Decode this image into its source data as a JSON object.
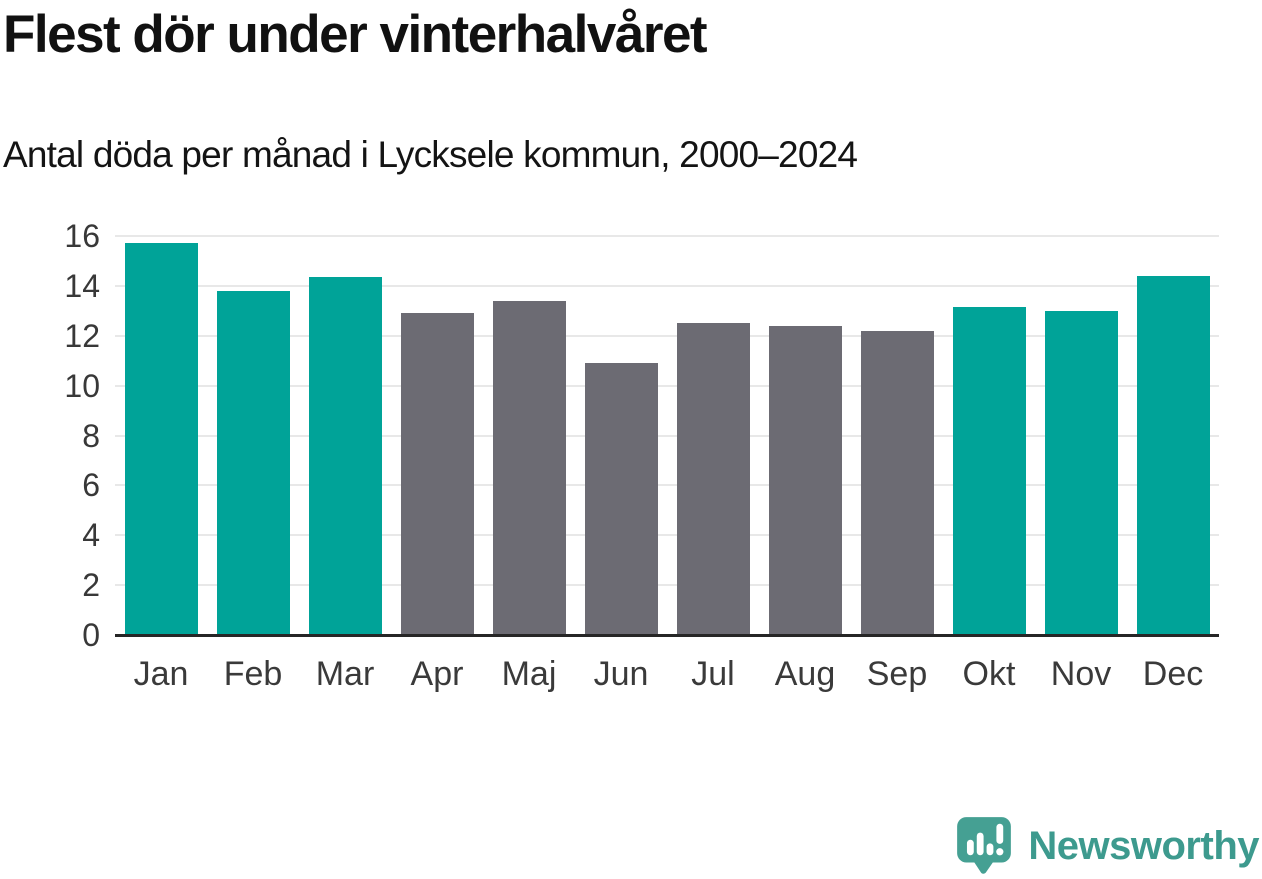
{
  "header": {
    "title": "Flest dör under vinterhalvåret",
    "subtitle": "Antal döda per månad i Lycksele kommun, 2000–2024"
  },
  "chart_data": {
    "type": "bar",
    "title": "Flest dör under vinterhalvåret",
    "subtitle": "Antal döda per månad i Lycksele kommun, 2000–2024",
    "categories": [
      "Jan",
      "Feb",
      "Mar",
      "Apr",
      "Maj",
      "Jun",
      "Jul",
      "Aug",
      "Sep",
      "Okt",
      "Nov",
      "Dec"
    ],
    "values": [
      15.7,
      13.8,
      14.35,
      12.9,
      13.4,
      10.9,
      12.5,
      12.4,
      12.2,
      13.15,
      13.0,
      14.4
    ],
    "bar_colors": [
      "teal",
      "teal",
      "teal",
      "gray",
      "gray",
      "gray",
      "gray",
      "gray",
      "gray",
      "teal",
      "teal",
      "teal"
    ],
    "palette": {
      "teal": "#00a398",
      "gray": "#6c6b73"
    },
    "xlabel": "",
    "ylabel": "",
    "ylim": [
      0,
      16
    ],
    "yticks": [
      0,
      2,
      4,
      6,
      8,
      10,
      12,
      14,
      16
    ],
    "grid": true,
    "legend": null,
    "style": {
      "gridline_color": "#e8e8e8",
      "axis_line_color": "#262626",
      "tick_label_color": "#383838"
    }
  },
  "branding": {
    "logo_text": "Newsworthy",
    "logo_color": "#3d9a8e",
    "icon_color": "#45a093",
    "icon": "newsworthy-speech-bubble-bar-chart-icon"
  }
}
